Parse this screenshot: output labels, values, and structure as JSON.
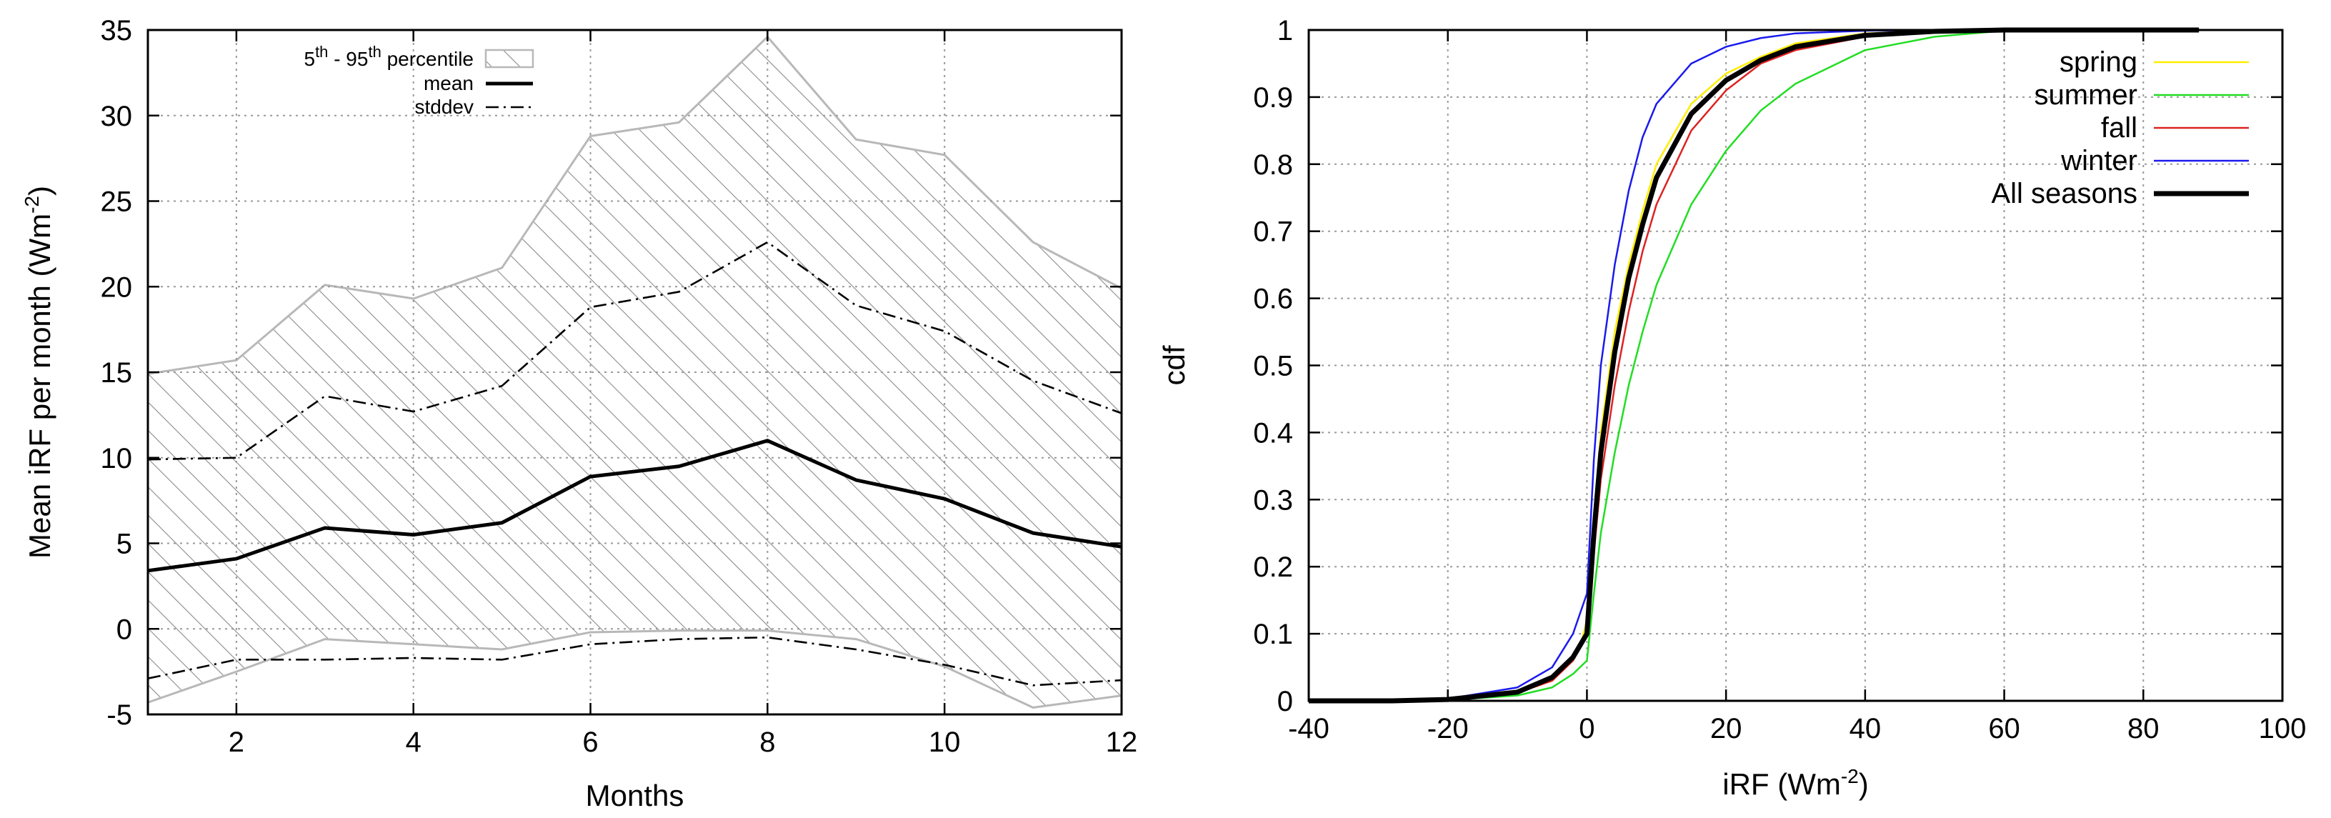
{
  "chart_data": [
    {
      "type": "line",
      "xlabel": "Months",
      "ylabel_main": "Mean iRF per month (Wm",
      "ylabel_sup": "-2",
      "ylabel_close": ")",
      "xlim": [
        1,
        12
      ],
      "ylim": [
        -5,
        35
      ],
      "xticks": [
        "2",
        "4",
        "6",
        "8",
        "10",
        "12"
      ],
      "xtick_values": [
        2,
        4,
        6,
        8,
        10,
        12
      ],
      "yticks": [
        "-5",
        "0",
        "5",
        "10",
        "15",
        "20",
        "25",
        "30",
        "35"
      ],
      "ytick_values": [
        -5,
        0,
        5,
        10,
        15,
        20,
        25,
        30,
        35
      ],
      "grid": true,
      "legend_position": "top-left",
      "legend": {
        "band_parts": [
          "5",
          "th",
          " - 95",
          "th",
          " percentile"
        ],
        "mean": "mean",
        "stddev": "stddev"
      },
      "x": [
        1,
        2,
        3,
        4,
        5,
        6,
        7,
        8,
        9,
        10,
        11,
        12
      ],
      "band_upper": [
        14.9,
        15.7,
        20.1,
        19.3,
        21.1,
        28.8,
        29.6,
        34.6,
        28.6,
        27.7,
        22.6,
        19.9
      ],
      "band_lower": [
        -4.3,
        -2.5,
        -0.6,
        -0.9,
        -1.2,
        -0.2,
        -0.1,
        -0.1,
        -0.6,
        -2.2,
        -4.6,
        -3.9
      ],
      "series": [
        {
          "name": "mean",
          "style": "solid",
          "values": [
            3.4,
            4.1,
            5.9,
            5.5,
            6.2,
            8.9,
            9.5,
            11.0,
            8.7,
            7.6,
            5.6,
            4.8
          ]
        },
        {
          "name": "stddev",
          "style": "dash-dot",
          "values": [
            9.9,
            10.0,
            13.6,
            12.7,
            14.2,
            18.8,
            19.7,
            22.6,
            18.9,
            17.4,
            14.5,
            12.6
          ]
        },
        {
          "name": "stddev",
          "style": "dash-dot",
          "values": [
            -2.9,
            -1.8,
            -1.8,
            -1.7,
            -1.8,
            -0.9,
            -0.6,
            -0.5,
            -1.2,
            -2.1,
            -3.3,
            -3.0
          ]
        }
      ]
    },
    {
      "type": "line",
      "xlabel_main": "iRF (Wm",
      "xlabel_sup": "-2",
      "xlabel_close": ")",
      "ylabel": "cdf",
      "xlim": [
        -40,
        100
      ],
      "ylim": [
        0,
        1
      ],
      "xticks": [
        "-40",
        "-20",
        "0",
        "20",
        "40",
        "60",
        "80",
        "100"
      ],
      "xtick_values": [
        -40,
        -20,
        0,
        20,
        40,
        60,
        80,
        100
      ],
      "yticks": [
        "0",
        "0.1",
        "0.2",
        "0.3",
        "0.4",
        "0.5",
        "0.6",
        "0.7",
        "0.8",
        "0.9",
        "1"
      ],
      "ytick_values": [
        0,
        0.1,
        0.2,
        0.3,
        0.4,
        0.5,
        0.6,
        0.7,
        0.8,
        0.9,
        1
      ],
      "grid": true,
      "legend_position": "top-right",
      "series": [
        {
          "name": "spring",
          "color": "#ffee00",
          "width": 2.5,
          "points": [
            [
              -40,
              0
            ],
            [
              -28,
              0
            ],
            [
              -20,
              0.002
            ],
            [
              -10,
              0.012
            ],
            [
              -5,
              0.03
            ],
            [
              -2,
              0.06
            ],
            [
              -1,
              0.08
            ],
            [
              0,
              0.12
            ],
            [
              1,
              0.27
            ],
            [
              2,
              0.4
            ],
            [
              4,
              0.55
            ],
            [
              6,
              0.65
            ],
            [
              8,
              0.73
            ],
            [
              10,
              0.8
            ],
            [
              15,
              0.89
            ],
            [
              20,
              0.935
            ],
            [
              25,
              0.96
            ],
            [
              30,
              0.98
            ],
            [
              40,
              0.995
            ],
            [
              50,
              0.999
            ],
            [
              60,
              1
            ],
            [
              88,
              1
            ]
          ]
        },
        {
          "name": "summer",
          "color": "#22dd22",
          "width": 2.5,
          "points": [
            [
              -40,
              0
            ],
            [
              -28,
              0
            ],
            [
              -20,
              0.001
            ],
            [
              -10,
              0.008
            ],
            [
              -5,
              0.02
            ],
            [
              -2,
              0.04
            ],
            [
              0,
              0.06
            ],
            [
              1,
              0.16
            ],
            [
              2,
              0.25
            ],
            [
              4,
              0.37
            ],
            [
              6,
              0.47
            ],
            [
              8,
              0.55
            ],
            [
              10,
              0.62
            ],
            [
              15,
              0.74
            ],
            [
              20,
              0.82
            ],
            [
              25,
              0.88
            ],
            [
              30,
              0.92
            ],
            [
              40,
              0.97
            ],
            [
              50,
              0.99
            ],
            [
              60,
              0.999
            ],
            [
              70,
              1
            ],
            [
              88,
              1
            ]
          ]
        },
        {
          "name": "fall",
          "color": "#dd2222",
          "width": 2.5,
          "points": [
            [
              -40,
              0
            ],
            [
              -28,
              0
            ],
            [
              -20,
              0.002
            ],
            [
              -10,
              0.012
            ],
            [
              -5,
              0.03
            ],
            [
              -2,
              0.06
            ],
            [
              0,
              0.1
            ],
            [
              1,
              0.22
            ],
            [
              2,
              0.33
            ],
            [
              4,
              0.47
            ],
            [
              6,
              0.58
            ],
            [
              8,
              0.67
            ],
            [
              10,
              0.74
            ],
            [
              15,
              0.85
            ],
            [
              20,
              0.91
            ],
            [
              25,
              0.95
            ],
            [
              30,
              0.97
            ],
            [
              40,
              0.99
            ],
            [
              50,
              0.998
            ],
            [
              60,
              1
            ],
            [
              88,
              1
            ]
          ]
        },
        {
          "name": "winter",
          "color": "#1a1aee",
          "width": 2.5,
          "points": [
            [
              -40,
              0
            ],
            [
              -28,
              0
            ],
            [
              -20,
              0.003
            ],
            [
              -10,
              0.02
            ],
            [
              -5,
              0.05
            ],
            [
              -2,
              0.1
            ],
            [
              0,
              0.16
            ],
            [
              1,
              0.36
            ],
            [
              2,
              0.5
            ],
            [
              4,
              0.65
            ],
            [
              6,
              0.76
            ],
            [
              8,
              0.84
            ],
            [
              10,
              0.89
            ],
            [
              15,
              0.95
            ],
            [
              20,
              0.975
            ],
            [
              25,
              0.988
            ],
            [
              30,
              0.995
            ],
            [
              40,
              0.999
            ],
            [
              50,
              1
            ],
            [
              88,
              1
            ]
          ]
        },
        {
          "name": "All seasons",
          "color": "#000000",
          "width": 7,
          "points": [
            [
              -40,
              0
            ],
            [
              -28,
              0
            ],
            [
              -20,
              0.002
            ],
            [
              -10,
              0.013
            ],
            [
              -5,
              0.035
            ],
            [
              -2,
              0.065
            ],
            [
              0,
              0.1
            ],
            [
              1,
              0.25
            ],
            [
              2,
              0.37
            ],
            [
              4,
              0.52
            ],
            [
              6,
              0.63
            ],
            [
              8,
              0.71
            ],
            [
              10,
              0.78
            ],
            [
              15,
              0.875
            ],
            [
              20,
              0.925
            ],
            [
              25,
              0.955
            ],
            [
              30,
              0.975
            ],
            [
              40,
              0.992
            ],
            [
              50,
              0.998
            ],
            [
              60,
              1
            ],
            [
              88,
              1
            ]
          ]
        }
      ]
    }
  ]
}
